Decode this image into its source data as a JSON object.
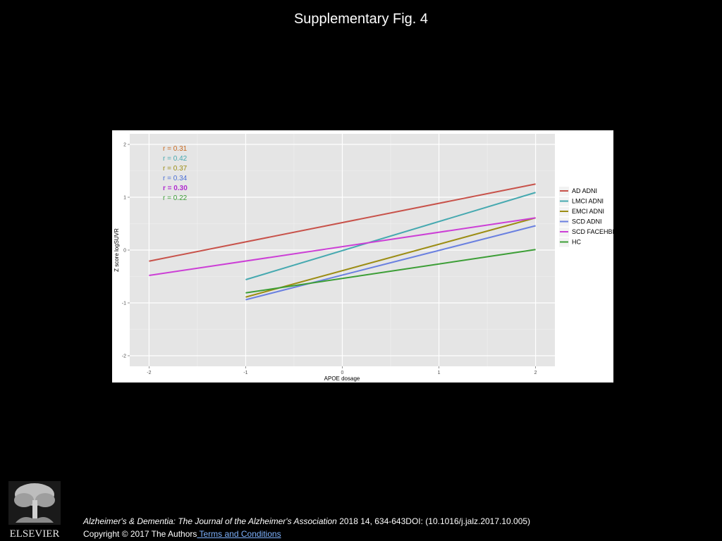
{
  "slide": {
    "title": "Supplementary Fig. 4"
  },
  "chart_data": {
    "type": "line",
    "title": "",
    "xlabel": "APOE dosage",
    "ylabel": "Z score logSUVR",
    "xlim": [
      -2.2,
      2.2
    ],
    "ylim": [
      -2.2,
      2.2
    ],
    "xticks": [
      -2,
      -1,
      0,
      1,
      2
    ],
    "xtick_labels": [
      "-2",
      "-1",
      "0",
      "1",
      "2"
    ],
    "yticks": [
      -2,
      -1,
      0,
      1,
      2
    ],
    "ytick_labels": [
      "-2",
      "-1",
      "0",
      "1",
      "2"
    ],
    "grid": true,
    "legend_position": "right",
    "series": [
      {
        "name": "AD ADNI",
        "color": "#c8524a",
        "x": [
          -2,
          2
        ],
        "y": [
          -0.21,
          1.25
        ]
      },
      {
        "name": "LMCI ADNI",
        "color": "#46a9b0",
        "x": [
          -1,
          2
        ],
        "y": [
          -0.56,
          1.09
        ]
      },
      {
        "name": "EMCI ADNI",
        "color": "#9c8d14",
        "x": [
          -1,
          2
        ],
        "y": [
          -0.89,
          0.61
        ]
      },
      {
        "name": "SCD ADNI",
        "color": "#6a80e0",
        "x": [
          -1,
          2
        ],
        "y": [
          -0.94,
          0.46
        ]
      },
      {
        "name": "SCD FACEHBI",
        "color": "#cc3fd6",
        "x": [
          -2,
          2
        ],
        "y": [
          -0.48,
          0.61
        ]
      },
      {
        "name": "HC",
        "color": "#3c9e36",
        "x": [
          -1,
          2
        ],
        "y": [
          -0.81,
          0.01
        ]
      }
    ],
    "annotations": [
      {
        "text": "r = 0.31",
        "color": "#c8691f",
        "bold": false
      },
      {
        "text": "r = 0.42",
        "color": "#46a9b0",
        "bold": false
      },
      {
        "text": "r = 0.37",
        "color": "#9c8d14",
        "bold": false
      },
      {
        "text": "r = 0.34",
        "color": "#4a6fd6",
        "bold": false
      },
      {
        "text": "r = 0.30",
        "color": "#b12bd0",
        "bold": true
      },
      {
        "text": "r = 0.22",
        "color": "#3c9e36",
        "bold": false
      }
    ]
  },
  "citation": {
    "journal": "Alzheimer's & Dementia: The Journal of the Alzheimer's Association",
    "details": " 2018 14, 634-643DOI: (10.1016/j.jalz.2017.10.005)",
    "copyright": "Copyright © 2017 The Authors",
    "terms_link": " Terms and Conditions"
  },
  "logo": {
    "text": "ELSEVIER",
    "icon": "elsevier-tree-icon"
  }
}
